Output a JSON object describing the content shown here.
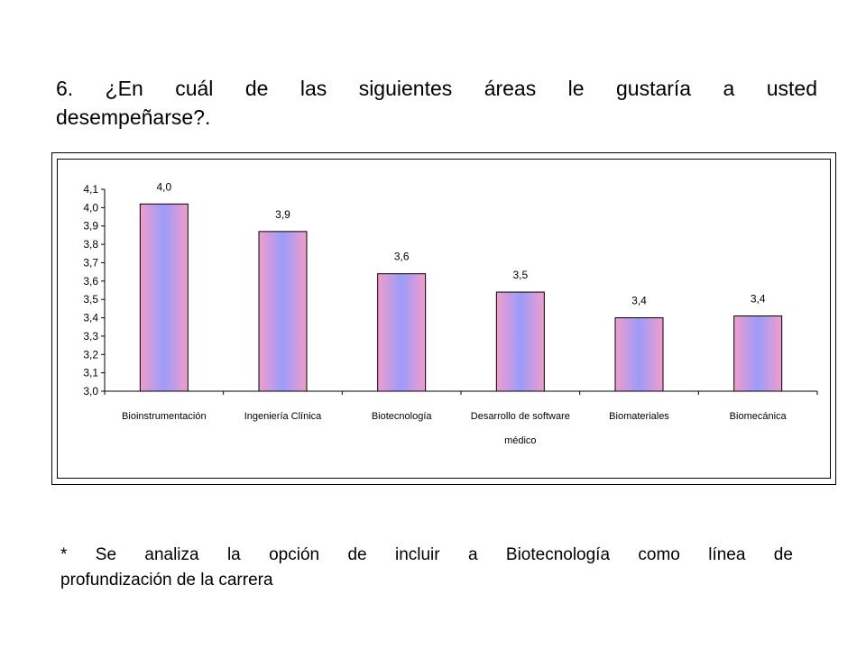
{
  "question": {
    "number": "6.",
    "words": [
      "¿En",
      "cuál",
      "de",
      "las",
      "siguientes",
      "áreas",
      "le",
      "gustaría",
      "a",
      "usted"
    ],
    "line2": "desempeñarse?."
  },
  "note": {
    "words": [
      "*",
      "Se",
      "analiza",
      "la",
      "opción",
      "de",
      "incluir",
      "a",
      "Biotecnología",
      "como",
      "línea",
      "de"
    ],
    "line2": "profundización de la carrera"
  },
  "chart_data": {
    "type": "bar",
    "categories": [
      [
        "Bioinstrumentación"
      ],
      [
        "Ingeniería Clínica"
      ],
      [
        "Biotecnología"
      ],
      [
        "Desarrollo de software",
        "médico"
      ],
      [
        "Biomateriales"
      ],
      [
        "Biomecánica"
      ]
    ],
    "values": [
      4.02,
      3.87,
      3.64,
      3.54,
      3.4,
      3.41
    ],
    "data_labels": [
      "4,0",
      "3,9",
      "3,6",
      "3,5",
      "3,4",
      "3,4"
    ],
    "yticks": [
      "3,0",
      "3,1",
      "3,2",
      "3,3",
      "3,4",
      "3,5",
      "3,6",
      "3,7",
      "3,8",
      "3,9",
      "4,0",
      "4,1"
    ],
    "ylim": [
      3.0,
      4.1
    ],
    "grid": false,
    "legend": "none",
    "colors": {
      "bar_edge": "#f29ccc",
      "bar_center": "#9b9cf9",
      "outline": "#000000"
    }
  }
}
